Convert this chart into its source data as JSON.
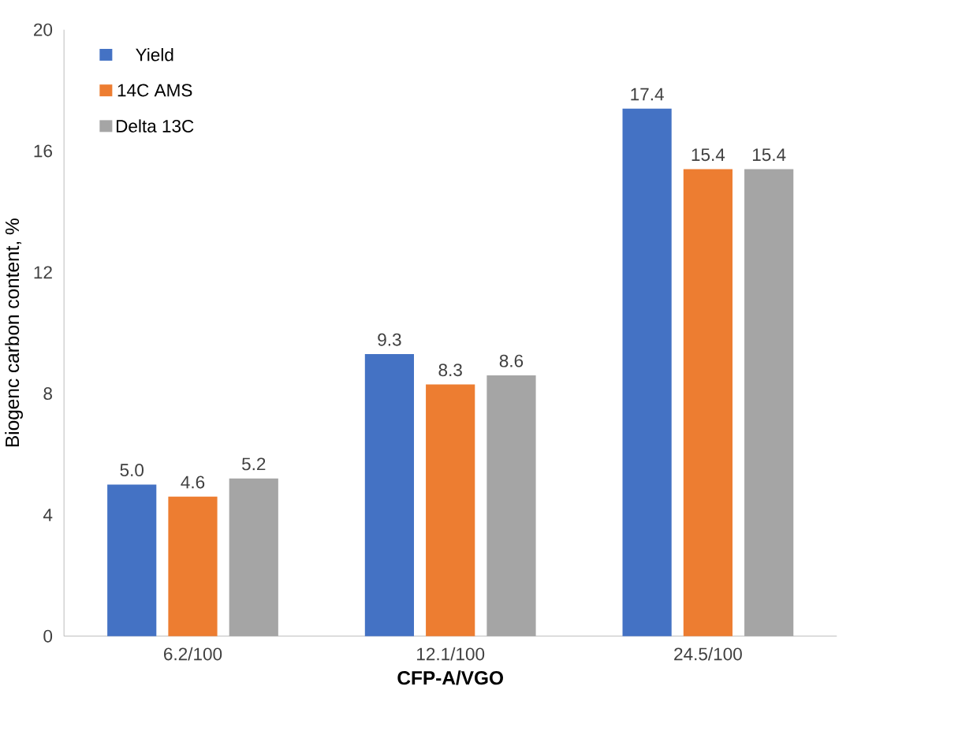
{
  "chart_data": {
    "type": "bar",
    "xlabel": "CFP-A/VGO",
    "ylabel": "Biogenc carbon content, %",
    "categories": [
      "6.2/100",
      "12.1/100",
      "24.5/100"
    ],
    "series": [
      {
        "name": "Yield",
        "color": "#4472c4",
        "values": [
          5.0,
          9.3,
          17.4
        ],
        "value_labels": [
          "5.0",
          "9.3",
          "17.4"
        ]
      },
      {
        "name": "14C AMS",
        "color": "#ed7d31",
        "values": [
          4.6,
          8.3,
          15.4
        ],
        "value_labels": [
          "4.6",
          "8.3",
          "15.4"
        ]
      },
      {
        "name": "Delta 13C",
        "color": "#a5a5a5",
        "values": [
          5.2,
          8.6,
          15.4
        ],
        "value_labels": [
          "5.2",
          "8.6",
          "15.4"
        ]
      }
    ],
    "ylim": [
      0,
      20
    ],
    "yticks": [
      0,
      4,
      8,
      12,
      16,
      20
    ],
    "grid": false,
    "legend": "top left"
  }
}
